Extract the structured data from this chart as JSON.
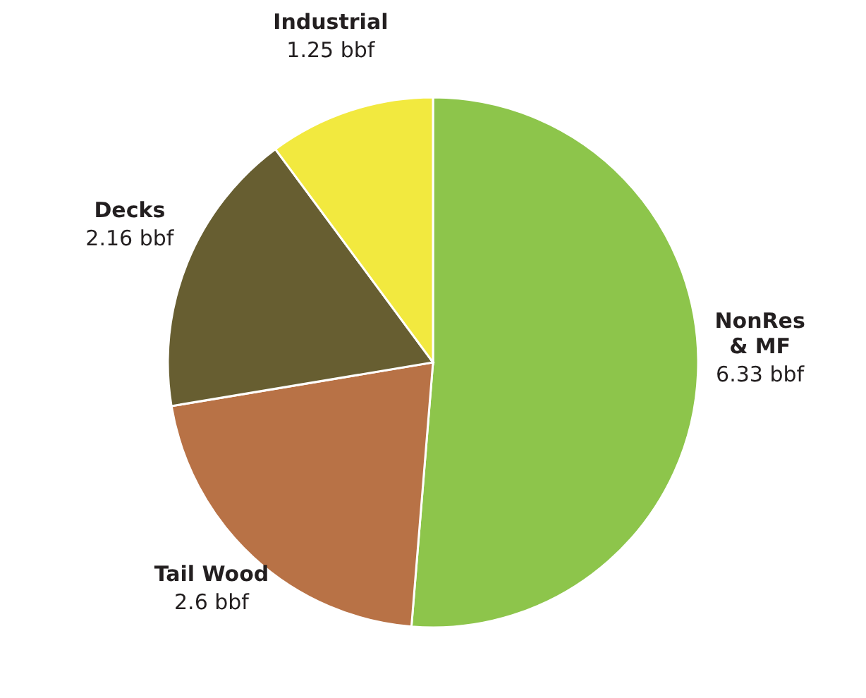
{
  "chart_data": {
    "type": "pie",
    "categories": [
      "NonRes & MF",
      "Tail Wood",
      "Decks",
      "Industrial"
    ],
    "values": [
      6.33,
      2.6,
      2.16,
      1.25
    ],
    "value_labels": [
      "6.33 bbf",
      "2.6 bbf",
      "2.16 bbf",
      "1.25 bbf"
    ],
    "colors": [
      "#8dc54b",
      "#b87246",
      "#675e31",
      "#f2e93f"
    ],
    "legend": false
  }
}
